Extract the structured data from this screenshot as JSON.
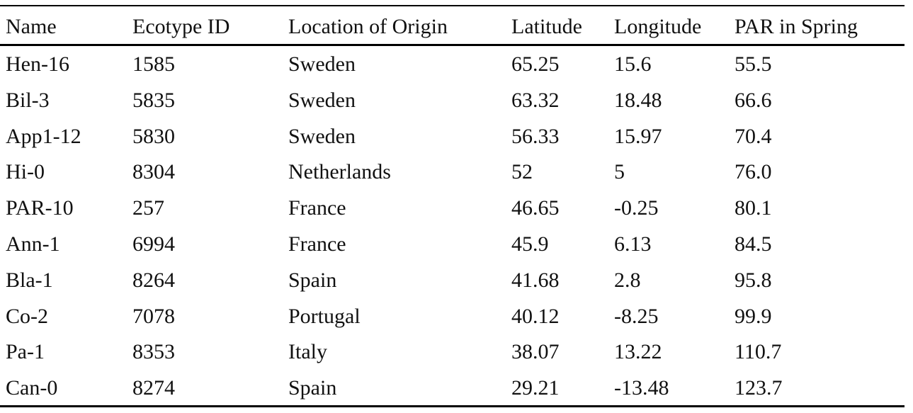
{
  "table": {
    "header": [
      "Name",
      "Ecotype ID",
      "Location of Origin",
      "Latitude",
      "Longitude",
      "PAR in Spring"
    ],
    "rows": [
      [
        "Hen-16",
        "1585",
        "Sweden",
        "65.25",
        "15.6",
        "55.5"
      ],
      [
        "Bil-3",
        "5835",
        "Sweden",
        "63.32",
        "18.48",
        "66.6"
      ],
      [
        "App1-12",
        "5830",
        "Sweden",
        "56.33",
        "15.97",
        "70.4"
      ],
      [
        "Hi-0",
        "8304",
        "Netherlands",
        "52",
        "5",
        "76.0"
      ],
      [
        "PAR-10",
        "257",
        "France",
        "46.65",
        "-0.25",
        "80.1"
      ],
      [
        "Ann-1",
        "6994",
        "France",
        "45.9",
        "6.13",
        "84.5"
      ],
      [
        "Bla-1",
        "8264",
        "Spain",
        "41.68",
        "2.8",
        "95.8"
      ],
      [
        "Co-2",
        "7078",
        "Portugal",
        "40.12",
        "-8.25",
        "99.9"
      ],
      [
        "Pa-1",
        "8353",
        "Italy",
        "38.07",
        "13.22",
        "110.7"
      ],
      [
        "Can-0",
        "8274",
        "Spain",
        "29.21",
        "-13.48",
        "123.7"
      ]
    ]
  }
}
